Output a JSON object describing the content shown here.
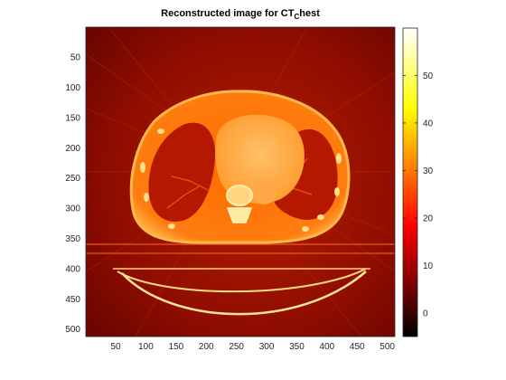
{
  "title": {
    "main": "Reconstructed image for CT",
    "subscript": "C",
    "rest": "hest"
  },
  "image": {
    "description_name": "ct-chest-reconstruction",
    "colormap": "hot",
    "x_range": [
      1,
      512
    ],
    "y_range": [
      1,
      512
    ],
    "x_ticks": [
      50,
      100,
      150,
      200,
      250,
      300,
      350,
      400,
      450,
      500
    ],
    "y_ticks": [
      50,
      100,
      150,
      200,
      250,
      300,
      350,
      400,
      450,
      500
    ],
    "y_reversed": true
  },
  "colorbar": {
    "range": [
      -5,
      60
    ],
    "ticks": [
      0,
      10,
      20,
      30,
      40,
      50
    ]
  },
  "colors": {
    "background_dark": "#8a0a00",
    "body_outer": "#ff7a00",
    "body_core": "#ff5a00",
    "lung": "#b01500",
    "heart": "#ffb85a",
    "bone": "#fff2c0",
    "table_line": "#ffe08a"
  }
}
